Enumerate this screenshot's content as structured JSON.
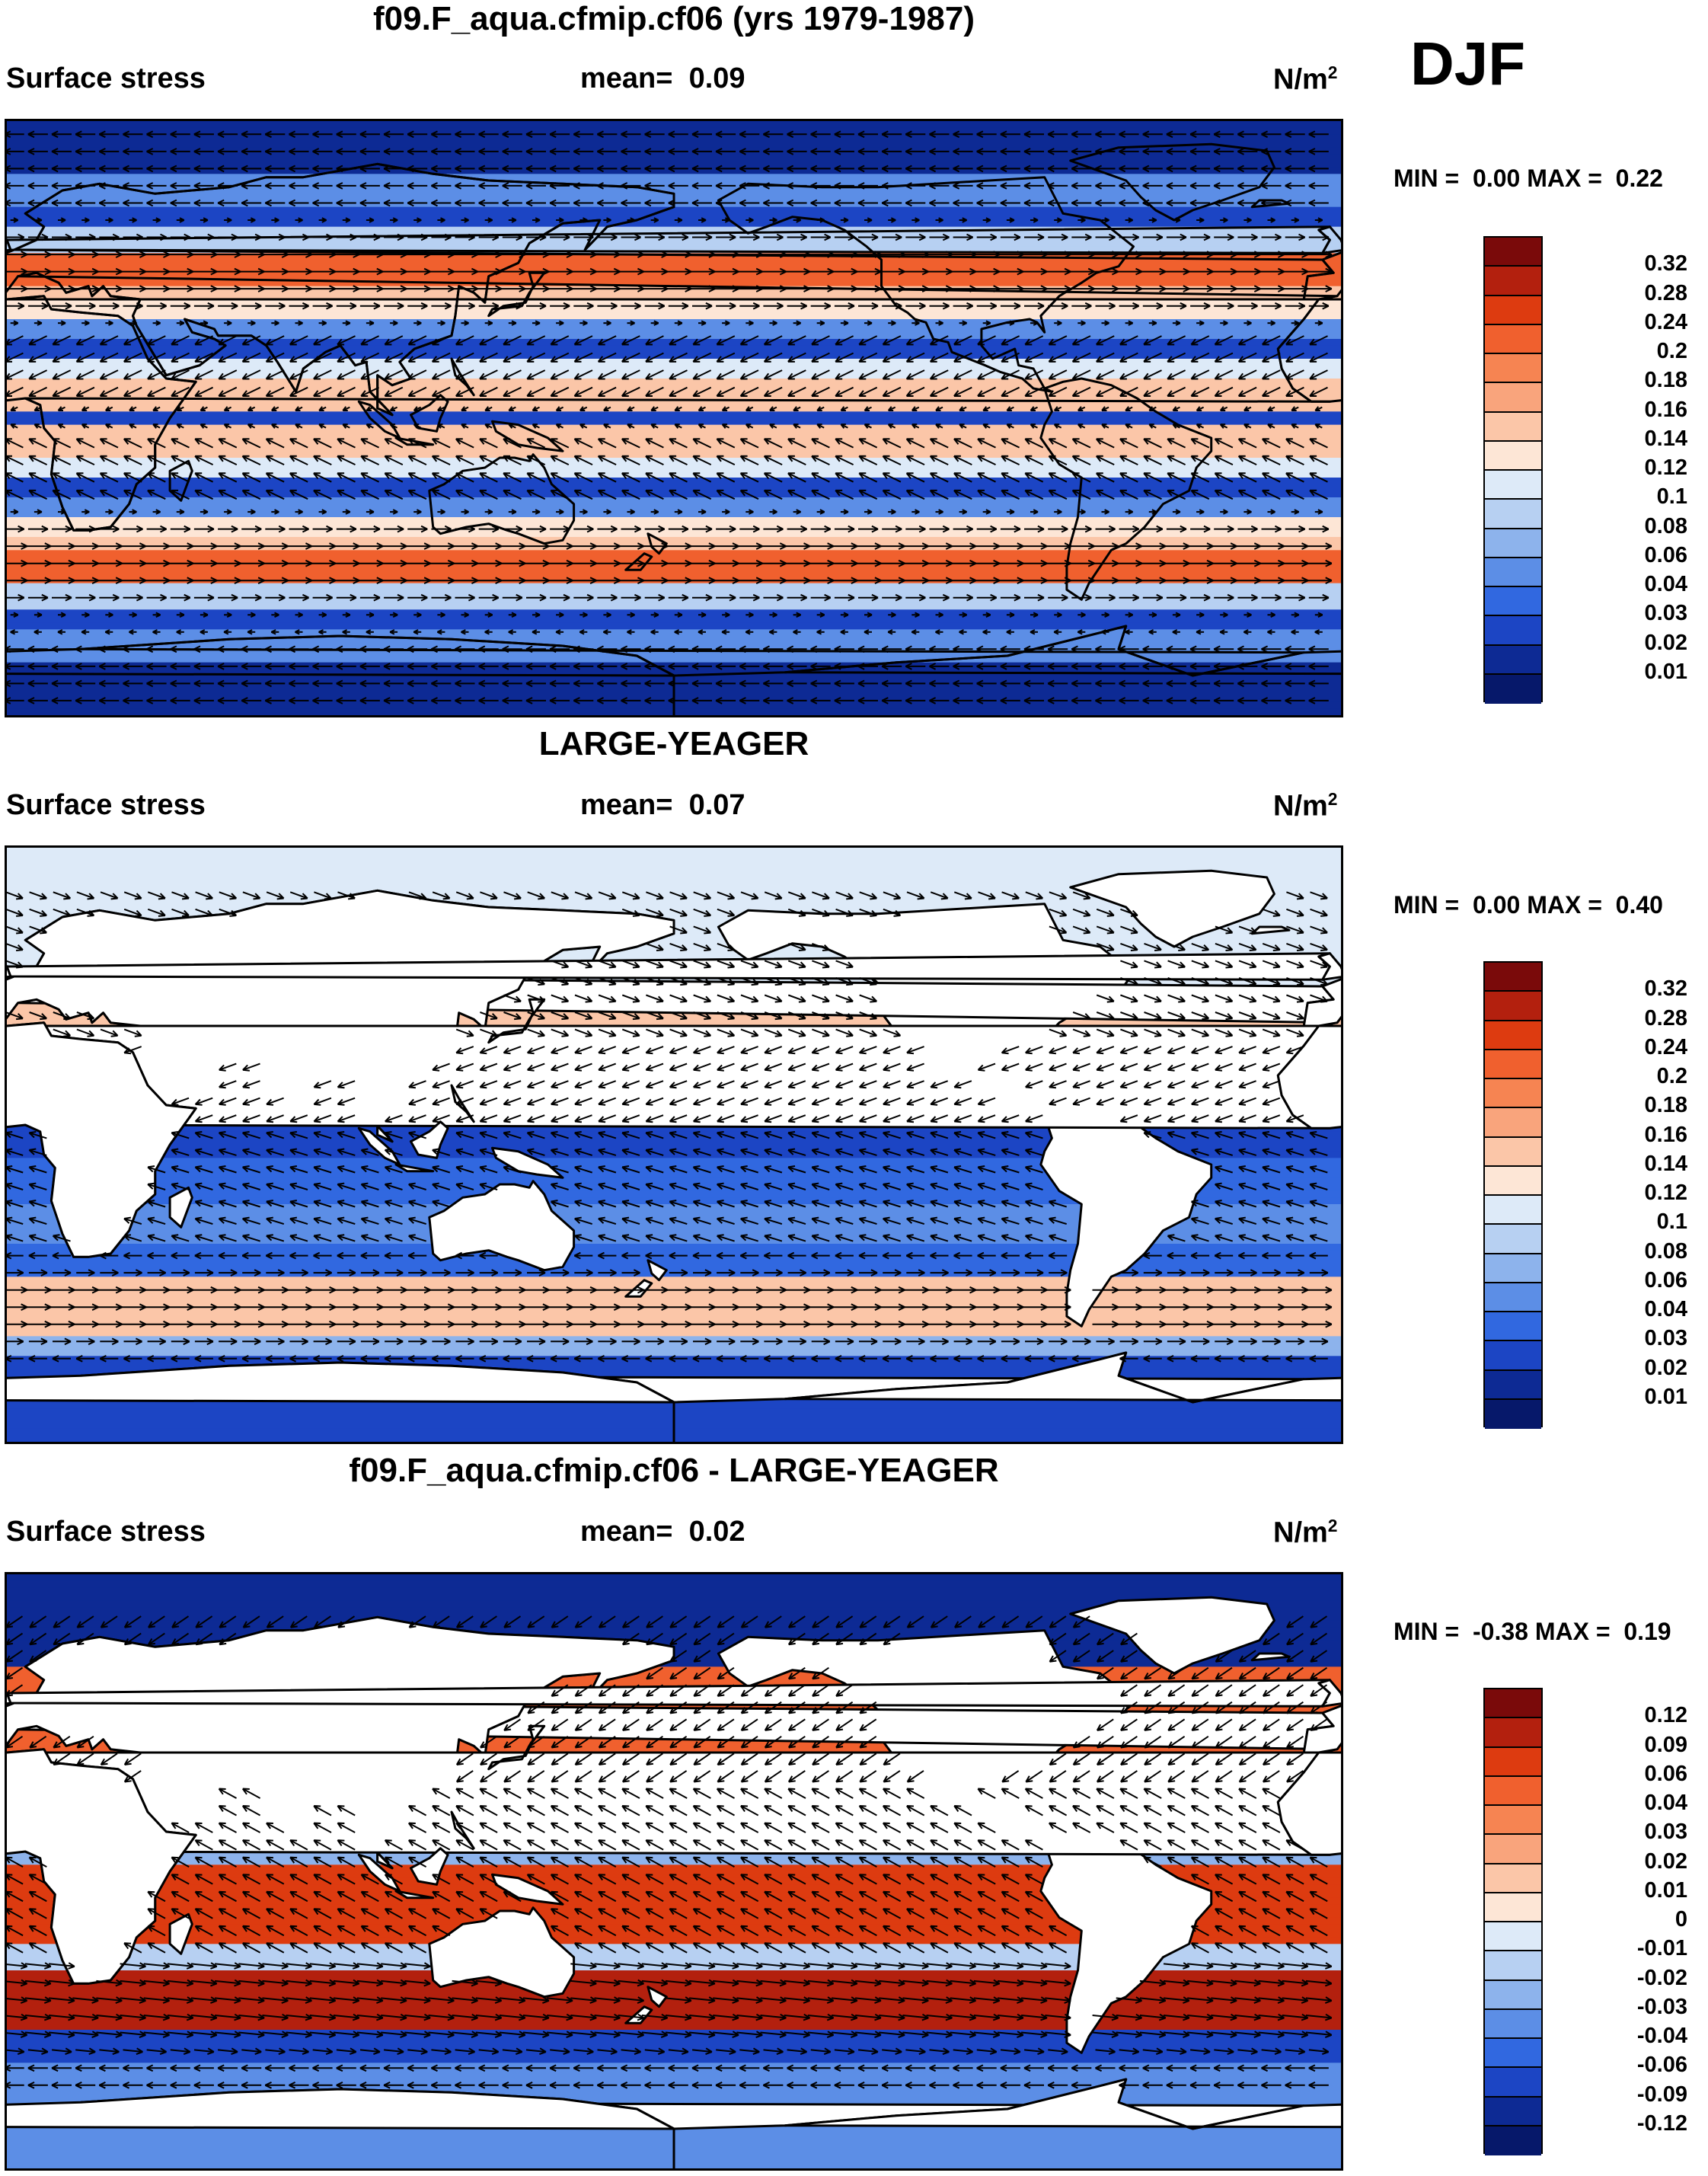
{
  "season": "DJF",
  "panels": [
    {
      "title": "f09.F_aqua.cfmip.cf06 (yrs 1979-1987)",
      "variable": "Surface stress",
      "mean_label": "mean=",
      "mean_value": "0.09",
      "units": "N/m",
      "units_exp": "2",
      "min_label": "MIN =",
      "min_value": "0.00",
      "max_label": "MAX =",
      "max_value": "0.22",
      "colorbar": [
        "0.32",
        "0.28",
        "0.24",
        "0.2",
        "0.18",
        "0.16",
        "0.14",
        "0.12",
        "0.1",
        "0.08",
        "0.06",
        "0.04",
        "0.03",
        "0.02",
        "0.01"
      ]
    },
    {
      "title": "LARGE-YEAGER",
      "variable": "Surface stress",
      "mean_label": "mean=",
      "mean_value": "0.07",
      "units": "N/m",
      "units_exp": "2",
      "min_label": "MIN =",
      "min_value": "0.00",
      "max_label": "MAX =",
      "max_value": "0.40",
      "colorbar": [
        "0.32",
        "0.28",
        "0.24",
        "0.2",
        "0.18",
        "0.16",
        "0.14",
        "0.12",
        "0.1",
        "0.08",
        "0.06",
        "0.04",
        "0.03",
        "0.02",
        "0.01"
      ]
    },
    {
      "title": "f09.F_aqua.cfmip.cf06 - LARGE-YEAGER",
      "variable": "Surface stress",
      "mean_label": "mean=",
      "mean_value": "0.02",
      "units": "N/m",
      "units_exp": "2",
      "min_label": "MIN =",
      "min_value": "-0.38",
      "max_label": "MAX =",
      "max_value": "0.19",
      "colorbar": [
        "0.12",
        "0.09",
        "0.06",
        "0.04",
        "0.03",
        "0.02",
        "0.01",
        "0",
        "-0.01",
        "-0.02",
        "-0.03",
        "-0.04",
        "-0.06",
        "-0.09",
        "-0.12"
      ]
    }
  ],
  "colors": {
    "scale_top_to_bottom": [
      "#7a0a0a",
      "#b3200e",
      "#dd3b10",
      "#f0602e",
      "#f68452",
      "#f9a47c",
      "#fbc6a8",
      "#fde6d6",
      "#ddeaf8",
      "#b7d0f2",
      "#8db3ec",
      "#5c8ee6",
      "#3168e0",
      "#1c45c4",
      "#0d2a94",
      "#06186a"
    ],
    "land": "#ffffff",
    "coast": "#000000"
  }
}
